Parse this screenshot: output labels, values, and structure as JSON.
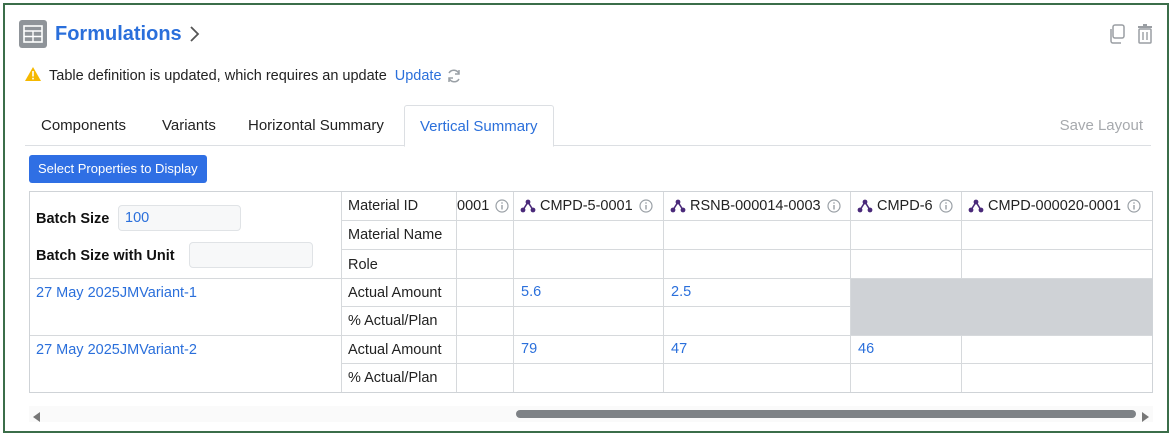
{
  "header": {
    "title": "Formulations",
    "title_icon": "table-icon",
    "actions": [
      {
        "name": "copy-icon"
      },
      {
        "name": "trash-icon"
      }
    ]
  },
  "warning": {
    "icon": "warning-icon",
    "message": "Table definition is updated, which requires an update",
    "update_label": "Update",
    "warning_color": "#f5b800"
  },
  "tabs": {
    "items": [
      "Components",
      "Variants",
      "Horizontal Summary",
      "Vertical Summary"
    ],
    "active": "Vertical Summary",
    "save_layout": "Save Layout"
  },
  "select_button": "Select Properties to Display",
  "batch": {
    "size_label": "Batch Size",
    "size_value": "100",
    "unit_label": "Batch Size with Unit",
    "unit_value": ""
  },
  "row_labels": {
    "material_id": "Material ID",
    "material_name": "Material Name",
    "role": "Role",
    "actual_amount": "Actual Amount",
    "pct_actual_plan": "% Actual/Plan"
  },
  "columns": [
    {
      "id": "0001",
      "partial": true
    },
    {
      "id": "CMPD-5-0001"
    },
    {
      "id": "RSNB-000014-0003"
    },
    {
      "id": "CMPD-6"
    },
    {
      "id": "CMPD-000020-0001"
    }
  ],
  "variants": [
    {
      "name": "27 May 2025JMVariant-1",
      "amounts": [
        "",
        "5.6",
        "2.5",
        "",
        ""
      ]
    },
    {
      "name": "27 May 2025JMVariant-2",
      "amounts": [
        "",
        "79",
        "47",
        "46",
        ""
      ]
    }
  ],
  "colors": {
    "accent": "#2a6fdb",
    "button": "#2f6fe4",
    "disabled_cell": "#cfd2d6",
    "molecule_icon": "#4a2a7a"
  }
}
